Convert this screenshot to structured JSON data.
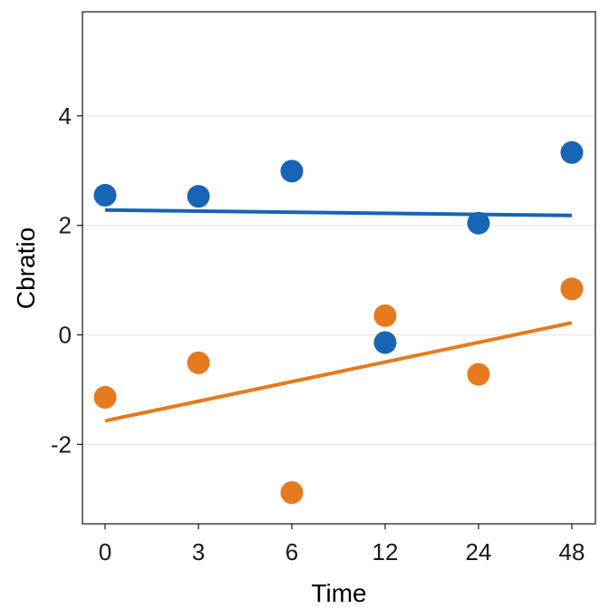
{
  "chart_data": {
    "type": "scatter",
    "xlabel": "Time",
    "ylabel": "Cbratio",
    "x_categories": [
      "0",
      "3",
      "6",
      "12",
      "24",
      "48"
    ],
    "ylim": [
      -3.45,
      5.9
    ],
    "y_ticks": [
      -2,
      0,
      2,
      4
    ],
    "y_tick_labels": [
      "-2",
      "0",
      "2",
      "4"
    ],
    "grid": "horizontal-major",
    "legend": "none",
    "series": [
      {
        "color": "#1864b5",
        "points": [
          {
            "x": "0",
            "y": 2.55
          },
          {
            "x": "3",
            "y": 2.53
          },
          {
            "x": "6",
            "y": 2.99
          },
          {
            "x": "12",
            "y": -0.14
          },
          {
            "x": "24",
            "y": 2.04
          },
          {
            "x": "48",
            "y": 3.33
          }
        ],
        "trend": {
          "x_start": "0",
          "y_start": 2.28,
          "x_end": "48",
          "y_end": 2.18
        }
      },
      {
        "color": "#e57a1e",
        "points": [
          {
            "x": "0",
            "y": -1.14
          },
          {
            "x": "3",
            "y": -0.51
          },
          {
            "x": "6",
            "y": -2.88
          },
          {
            "x": "12",
            "y": 0.35
          },
          {
            "x": "24",
            "y": -0.72
          },
          {
            "x": "48",
            "y": 0.84
          }
        ],
        "trend": {
          "x_start": "0",
          "y_start": -1.57,
          "x_end": "48",
          "y_end": 0.22
        }
      }
    ]
  }
}
